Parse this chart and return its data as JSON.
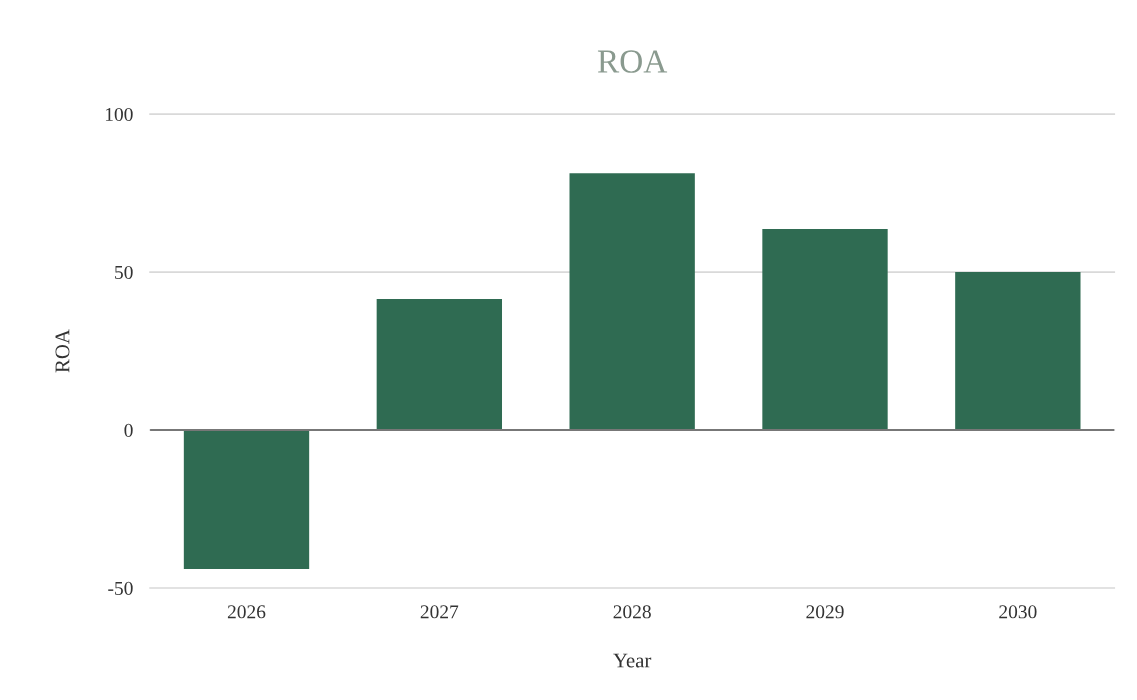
{
  "chart_data": {
    "type": "bar",
    "title": "ROA",
    "xlabel": "Year",
    "ylabel": "ROA",
    "categories": [
      "2026",
      "2027",
      "2028",
      "2029",
      "2030"
    ],
    "values": [
      -44,
      41.5,
      81.3,
      63.6,
      50
    ],
    "color": "#2f6b52",
    "ylim": [
      -50,
      100
    ],
    "yticks": [
      -50,
      0,
      50,
      100
    ],
    "grid": "y",
    "legend": false
  }
}
